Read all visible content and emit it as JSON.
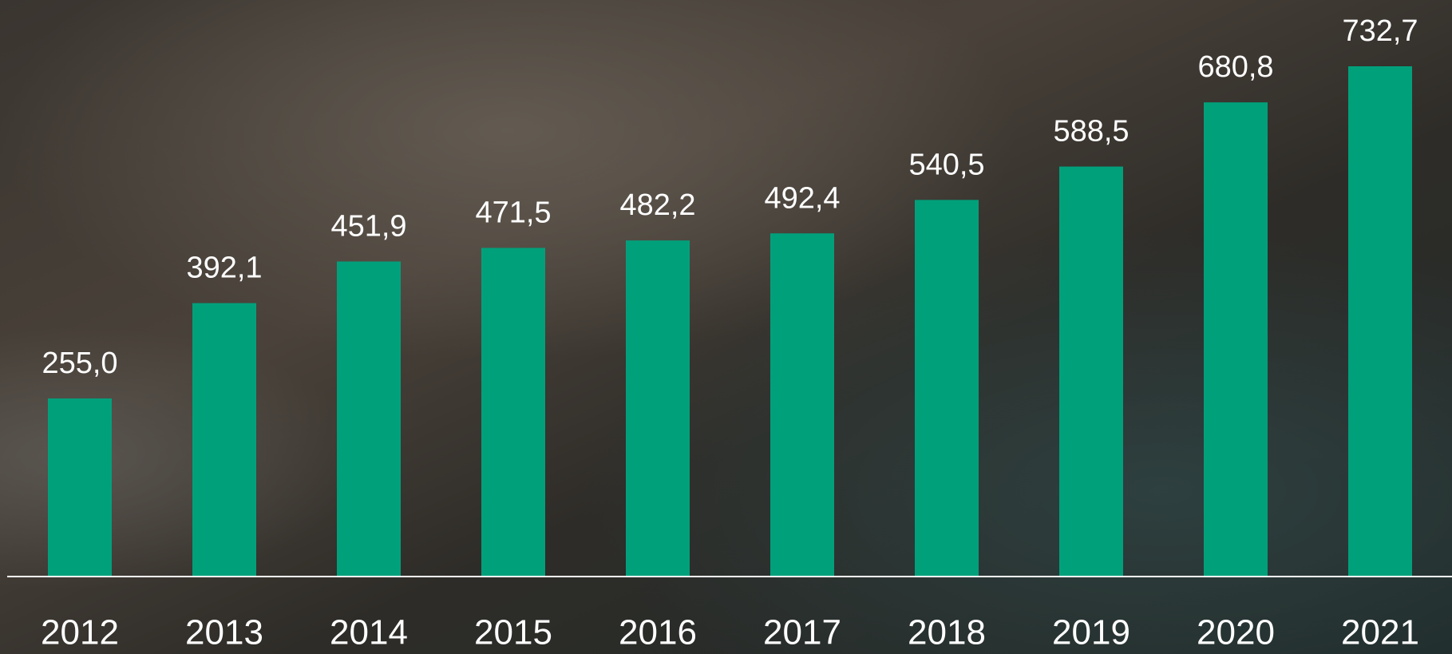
{
  "chart_data": {
    "type": "bar",
    "categories": [
      "2012",
      "2013",
      "2014",
      "2015",
      "2016",
      "2017",
      "2018",
      "2019",
      "2020",
      "2021"
    ],
    "values": [
      255.0,
      392.1,
      451.9,
      471.5,
      482.2,
      492.4,
      540.5,
      588.5,
      680.8,
      732.7
    ],
    "value_labels": [
      "255,0",
      "392,1",
      "451,9",
      "471,5",
      "482,2",
      "492,4",
      "540,5",
      "588,5",
      "680,8",
      "732,7"
    ],
    "color": "#00a07b"
  }
}
